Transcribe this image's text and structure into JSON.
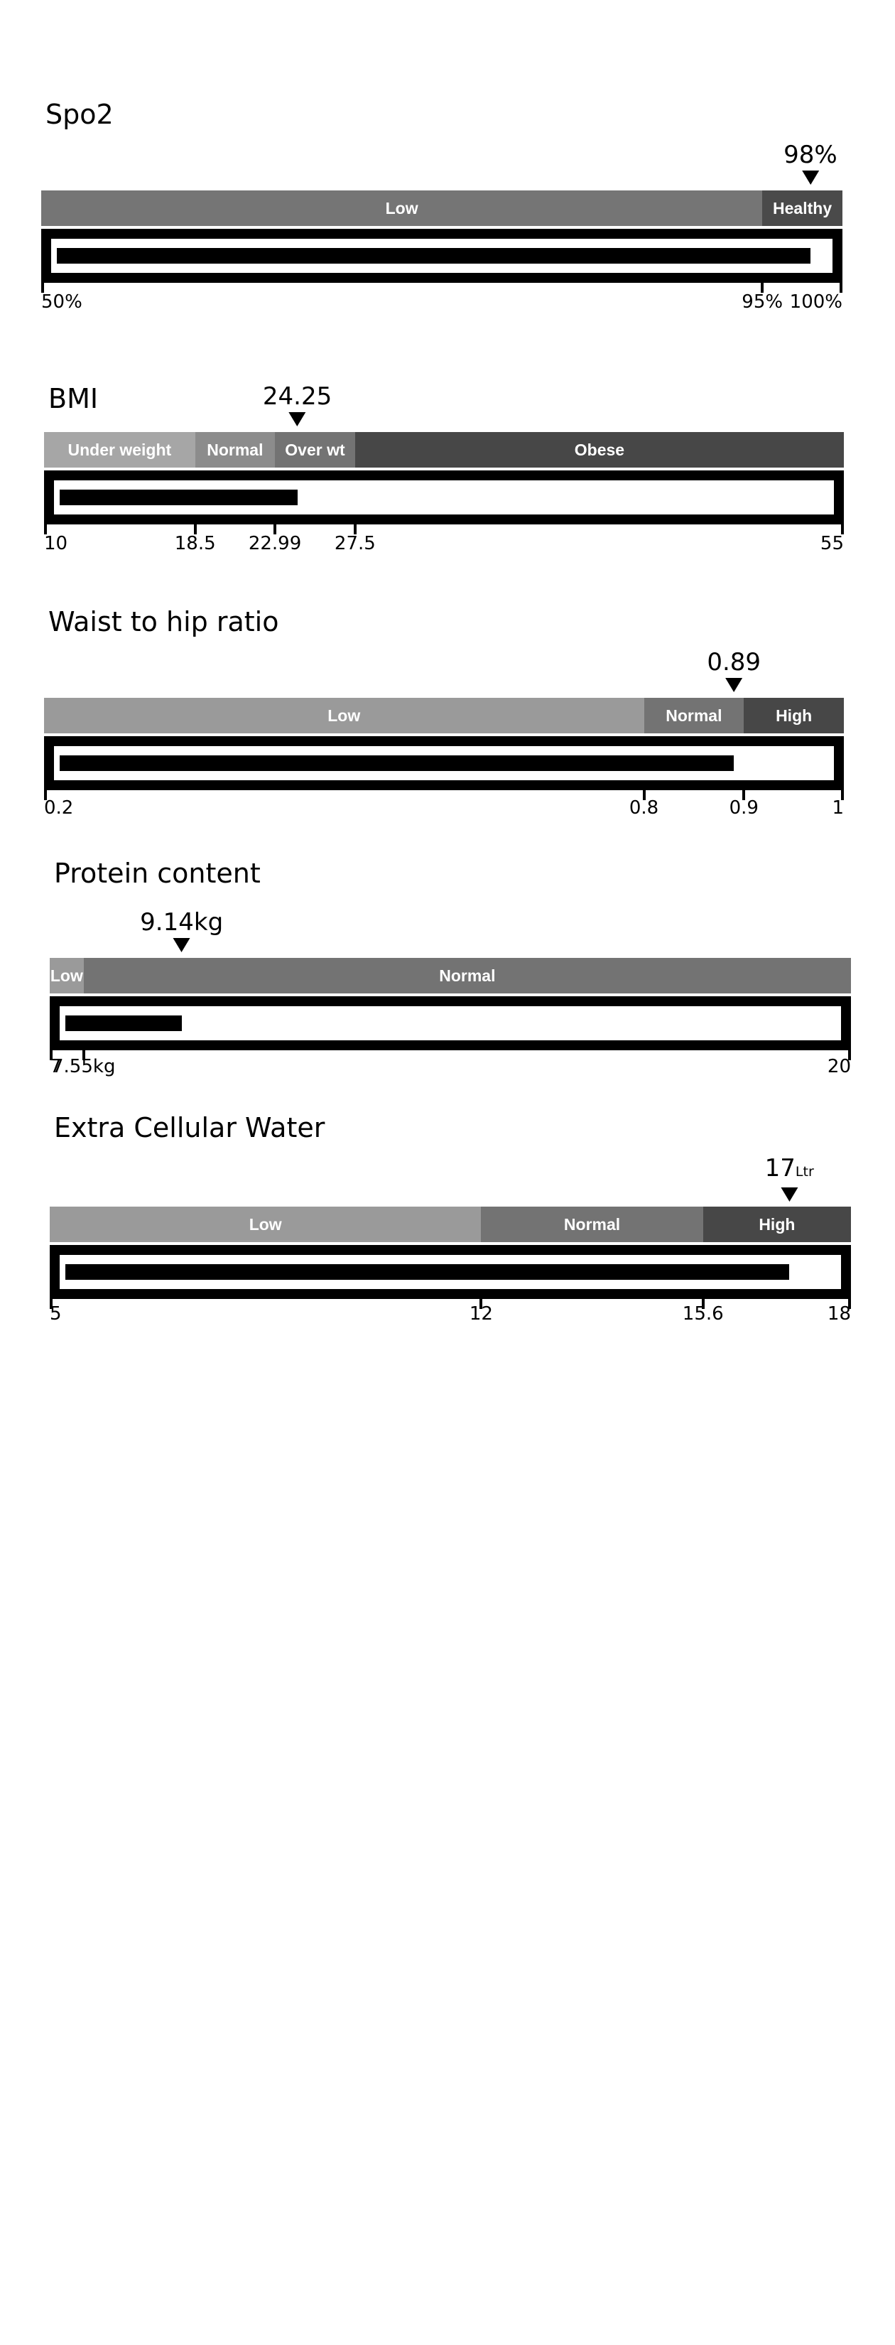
{
  "gauges": [
    {
      "id": "spo2",
      "title": "Spo2",
      "value_display": "98%",
      "unit_suffix": "",
      "value": 98,
      "min": 50,
      "max": 100,
      "segments": [
        {
          "label": "Low",
          "from": 50,
          "to": 95,
          "color": "#757575"
        },
        {
          "label": "Healthy",
          "from": 95,
          "to": 100,
          "color": "#4a4a4a"
        }
      ],
      "ticks": [
        {
          "value": 50,
          "label": "50%"
        },
        {
          "value": 95,
          "label": "95%"
        },
        {
          "value": 100,
          "label": "100%"
        }
      ]
    },
    {
      "id": "bmi",
      "title": "BMI",
      "value_display": "24.25",
      "unit_suffix": "",
      "value": 24.25,
      "min": 10,
      "max": 55,
      "segments": [
        {
          "label": "Under weight",
          "from": 10,
          "to": 18.5,
          "color": "#a6a6a6"
        },
        {
          "label": "Normal",
          "from": 18.5,
          "to": 22.99,
          "color": "#8c8c8c"
        },
        {
          "label": "Over wt",
          "from": 22.99,
          "to": 27.5,
          "color": "#737373"
        },
        {
          "label": "Obese",
          "from": 27.5,
          "to": 55,
          "color": "#474747"
        }
      ],
      "ticks": [
        {
          "value": 10,
          "label": "10"
        },
        {
          "value": 18.5,
          "label": "18.5"
        },
        {
          "value": 22.99,
          "label": "22.99"
        },
        {
          "value": 27.5,
          "label": "27.5"
        },
        {
          "value": 55,
          "label": "55"
        }
      ]
    },
    {
      "id": "waist-hip",
      "title": "Waist to hip ratio",
      "value_display": "0.89",
      "unit_suffix": "",
      "value": 0.89,
      "min": 0.2,
      "max": 1,
      "segments": [
        {
          "label": "Low",
          "from": 0.2,
          "to": 0.8,
          "color": "#9a9a9a"
        },
        {
          "label": "Normal",
          "from": 0.8,
          "to": 0.9,
          "color": "#737373"
        },
        {
          "label": "High",
          "from": 0.9,
          "to": 1,
          "color": "#474747"
        }
      ],
      "ticks": [
        {
          "value": 0.2,
          "label": "0.2"
        },
        {
          "value": 0.8,
          "label": "0.8"
        },
        {
          "value": 0.9,
          "label": "0.9"
        },
        {
          "value": 1,
          "label": "1"
        }
      ]
    },
    {
      "id": "protein",
      "title": "Protein content",
      "value_display": "9.14kg",
      "unit_suffix": "",
      "value": 9.14,
      "min": 7,
      "max": 20,
      "segments": [
        {
          "label": "Low",
          "from": 7,
          "to": 7.55,
          "color": "#9a9a9a"
        },
        {
          "label": "Normal",
          "from": 7.55,
          "to": 20,
          "color": "#737373"
        }
      ],
      "ticks": [
        {
          "value": 7,
          "label": "7"
        },
        {
          "value": 7.55,
          "label": "7.55kg"
        },
        {
          "value": 20,
          "label": "20"
        }
      ]
    },
    {
      "id": "ecw",
      "title": "Extra Cellular Water",
      "value_display": "17",
      "unit_suffix": "Ltr",
      "value": 17,
      "min": 5,
      "max": 18,
      "segments": [
        {
          "label": "Low",
          "from": 5,
          "to": 12,
          "color": "#9a9a9a"
        },
        {
          "label": "Normal",
          "from": 12,
          "to": 15.6,
          "color": "#737373"
        },
        {
          "label": "High",
          "from": 15.6,
          "to": 18,
          "color": "#474747"
        }
      ],
      "ticks": [
        {
          "value": 5,
          "label": "5"
        },
        {
          "value": 12,
          "label": "12"
        },
        {
          "value": 15.6,
          "label": "15.6"
        },
        {
          "value": 18,
          "label": "18"
        }
      ]
    }
  ],
  "chart_data": [
    {
      "type": "bar",
      "title": "Spo2",
      "value": 98,
      "value_label": "98%",
      "xlim": [
        50,
        100
      ],
      "ranges": [
        {
          "label": "Low",
          "from": 50,
          "to": 95
        },
        {
          "label": "Healthy",
          "from": 95,
          "to": 100
        }
      ],
      "tick_labels": [
        "50%",
        "95%",
        "100%"
      ]
    },
    {
      "type": "bar",
      "title": "BMI",
      "value": 24.25,
      "value_label": "24.25",
      "xlim": [
        10,
        55
      ],
      "ranges": [
        {
          "label": "Under weight",
          "from": 10,
          "to": 18.5
        },
        {
          "label": "Normal",
          "from": 18.5,
          "to": 22.99
        },
        {
          "label": "Over wt",
          "from": 22.99,
          "to": 27.5
        },
        {
          "label": "Obese",
          "from": 27.5,
          "to": 55
        }
      ],
      "tick_labels": [
        "10",
        "18.5",
        "22.99",
        "27.5",
        "55"
      ]
    },
    {
      "type": "bar",
      "title": "Waist to hip ratio",
      "value": 0.89,
      "value_label": "0.89",
      "xlim": [
        0.2,
        1
      ],
      "ranges": [
        {
          "label": "Low",
          "from": 0.2,
          "to": 0.8
        },
        {
          "label": "Normal",
          "from": 0.8,
          "to": 0.9
        },
        {
          "label": "High",
          "from": 0.9,
          "to": 1
        }
      ],
      "tick_labels": [
        "0.2",
        "0.8",
        "0.9",
        "1"
      ]
    },
    {
      "type": "bar",
      "title": "Protein content",
      "value": 9.14,
      "value_label": "9.14kg",
      "xlim": [
        7,
        20
      ],
      "ranges": [
        {
          "label": "Low",
          "from": 7,
          "to": 7.55
        },
        {
          "label": "Normal",
          "from": 7.55,
          "to": 20
        }
      ],
      "tick_labels": [
        "7",
        "7.55kg",
        "20"
      ]
    },
    {
      "type": "bar",
      "title": "Extra Cellular Water",
      "value": 17,
      "value_label": "17Ltr",
      "xlim": [
        5,
        18
      ],
      "ranges": [
        {
          "label": "Low",
          "from": 5,
          "to": 12
        },
        {
          "label": "Normal",
          "from": 12,
          "to": 15.6
        },
        {
          "label": "High",
          "from": 15.6,
          "to": 18
        }
      ],
      "tick_labels": [
        "5",
        "12",
        "15.6",
        "18"
      ]
    }
  ]
}
